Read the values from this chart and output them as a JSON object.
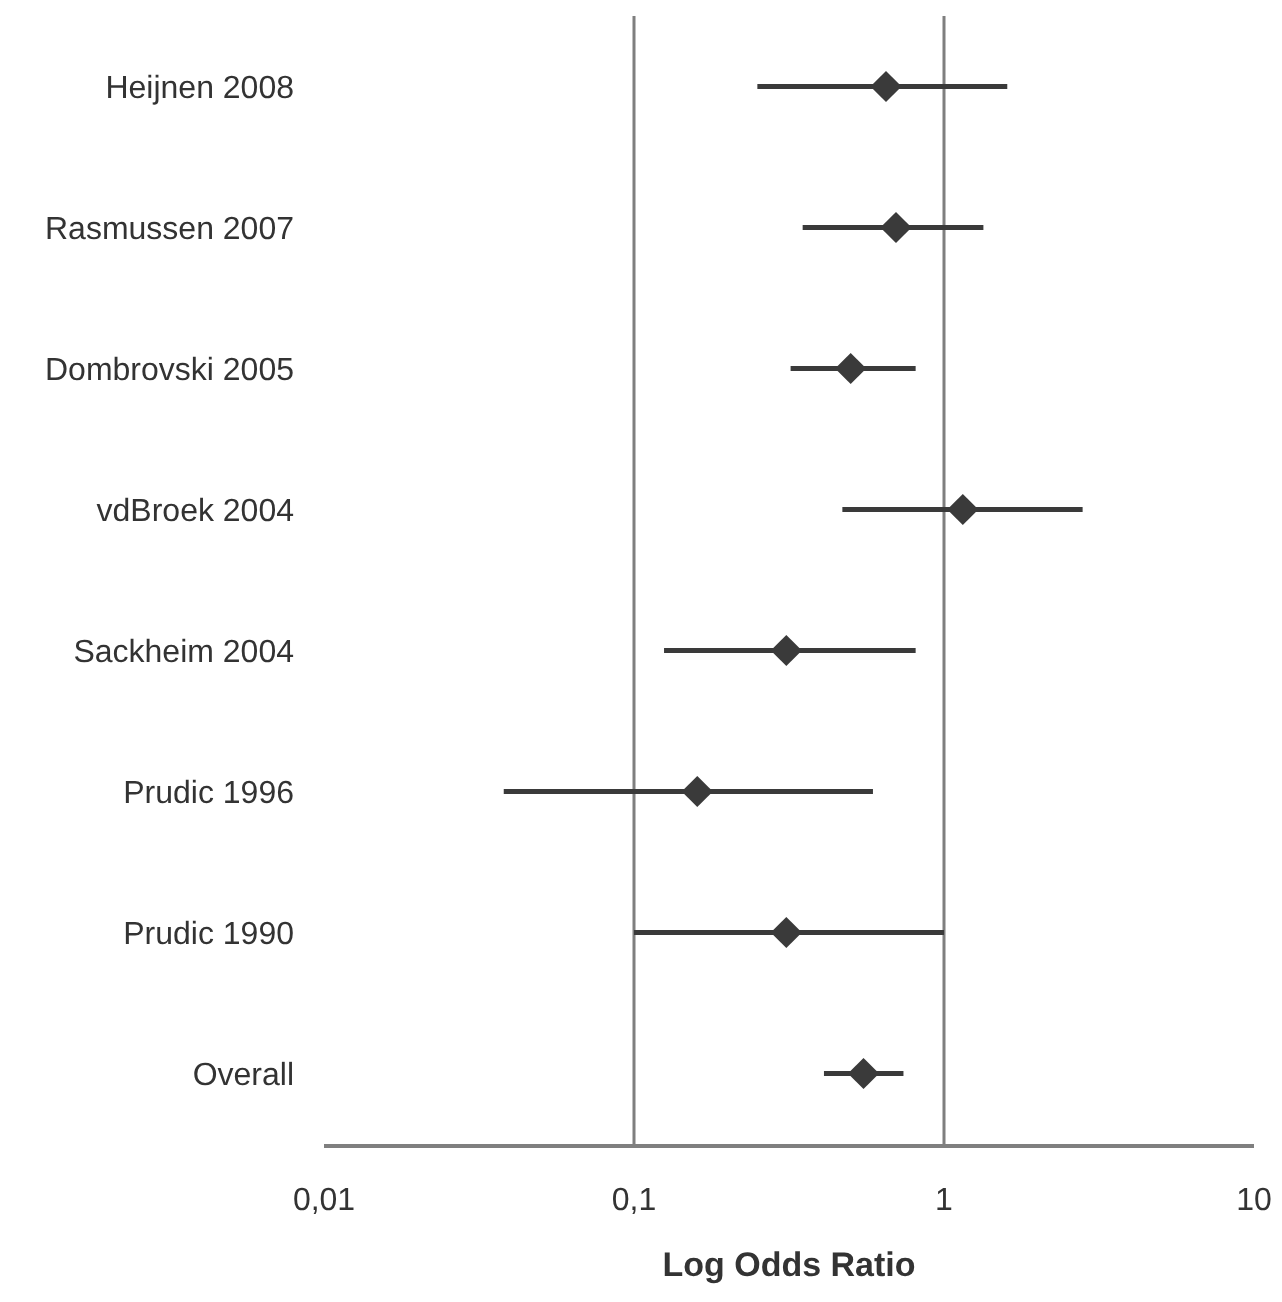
{
  "chart_data": {
    "type": "scatter",
    "orientation": "horizontal",
    "xlabel": "Log Odds Ratio",
    "categories": [
      "Heijnen 2008",
      "Rasmussen 2007",
      "Dombrovski 2005",
      "vdBroek 2004",
      "Sackheim 2004",
      "Prudic 1996",
      "Prudic 1990",
      "Overall"
    ],
    "values": [
      0.65,
      0.7,
      0.5,
      1.15,
      0.31,
      0.16,
      0.31,
      0.55
    ],
    "errors": [
      [
        0.25,
        1.6
      ],
      [
        0.35,
        1.34
      ],
      [
        0.32,
        0.81
      ],
      [
        0.47,
        2.8
      ],
      [
        0.125,
        0.81
      ],
      [
        0.038,
        0.59
      ],
      [
        0.1,
        1.0
      ],
      [
        0.41,
        0.74
      ]
    ],
    "color": "#3a3a3a",
    "marker": "diamond",
    "log": "x",
    "xlim": [
      0.01,
      10
    ],
    "xticks": [
      {
        "value": 0.01,
        "label": "0,01"
      },
      {
        "value": 0.1,
        "label": "0,1"
      },
      1,
      10
    ],
    "ref_lines": [
      {
        "axis": "x",
        "value": 0.1,
        "color": "#7f7f7f"
      },
      {
        "axis": "x",
        "value": 1,
        "color": "#7f7f7f"
      }
    ]
  }
}
